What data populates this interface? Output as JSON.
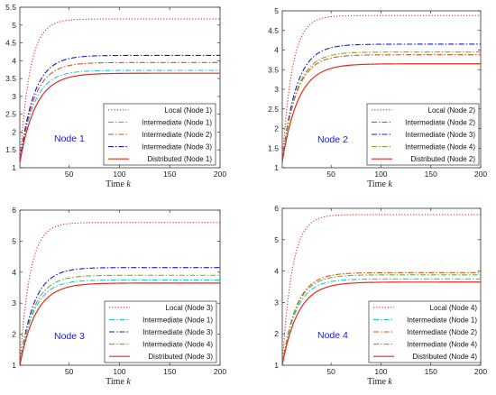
{
  "chart_data": [
    {
      "type": "line",
      "node_label": "Node 1",
      "xlabel": "Time",
      "xlabel_var": "k",
      "xlim": [
        1,
        200
      ],
      "ylim": [
        1,
        5.5
      ],
      "xticks": [
        50,
        100,
        150,
        200
      ],
      "yticks": [
        1,
        1.5,
        2,
        2.5,
        3,
        3.5,
        4,
        4.5,
        5,
        5.5
      ],
      "ytick_labels": [
        "1",
        "1.5",
        "2",
        "2.5",
        "3",
        "3.5",
        "4",
        "4.5",
        "5",
        "5.5"
      ],
      "legend_position": "bottom-right",
      "series": [
        {
          "name": "Local (Node 1)",
          "start": 1.15,
          "end": 5.17,
          "tau": 10,
          "color": "#e8291c",
          "dash": "1.2,2"
        },
        {
          "name": "Intermediate (Node 1)",
          "start": 1.15,
          "end": 3.73,
          "tau": 14,
          "color": "#1ec8d8",
          "dash": "6,2,1.5,2"
        },
        {
          "name": "Intermediate (Node 2)",
          "start": 1.15,
          "end": 3.95,
          "tau": 14,
          "color": "#d95319",
          "dash": "6,2,1.5,2"
        },
        {
          "name": "Intermediate (Node 3)",
          "start": 1.15,
          "end": 4.15,
          "tau": 14,
          "color": "#1a1ad6",
          "dash": "6,2,1.5,2"
        },
        {
          "name": "Distributed (Node 1)",
          "start": 1.15,
          "end": 3.65,
          "tau": 16,
          "color": "#e8291c",
          "dash": ""
        }
      ]
    },
    {
      "type": "line",
      "node_label": "Node 2",
      "xlabel": "Time",
      "xlabel_var": "k",
      "xlim": [
        1,
        200
      ],
      "ylim": [
        1,
        5
      ],
      "xticks": [
        50,
        100,
        150,
        200
      ],
      "yticks": [
        1,
        1.5,
        2,
        2.5,
        3,
        3.5,
        4,
        4.5,
        5
      ],
      "ytick_labels": [
        "1",
        "1.5",
        "2",
        "2.5",
        "3",
        "3.5",
        "4",
        "4.5",
        "5"
      ],
      "legend_position": "bottom-right",
      "series": [
        {
          "name": "Local (Node 2)",
          "start": 1.15,
          "end": 4.88,
          "tau": 10,
          "color": "#e8291c",
          "dash": "1.2,2"
        },
        {
          "name": "Intermediate (Node 2)",
          "start": 1.15,
          "end": 3.88,
          "tau": 14,
          "color": "#d95319",
          "dash": "6,2,1.5,2"
        },
        {
          "name": "Intermediate (Node 3)",
          "start": 1.15,
          "end": 4.15,
          "tau": 14,
          "color": "#1a1ad6",
          "dash": "6,2,1.5,2"
        },
        {
          "name": "Intermediate (Node 4)",
          "start": 1.15,
          "end": 3.95,
          "tau": 14,
          "color": "#77ac30",
          "dash": "6,2,1.5,2"
        },
        {
          "name": "Distributed (Node 2)",
          "start": 1.15,
          "end": 3.65,
          "tau": 16,
          "color": "#e8291c",
          "dash": ""
        }
      ]
    },
    {
      "type": "line",
      "node_label": "Node 3",
      "xlabel": "Time",
      "xlabel_var": "k",
      "xlim": [
        1,
        200
      ],
      "ylim": [
        1,
        6
      ],
      "xticks": [
        50,
        100,
        150,
        200
      ],
      "yticks": [
        1,
        2,
        3,
        4,
        5,
        6
      ],
      "ytick_labels": [
        "1",
        "2",
        "3",
        "4",
        "5",
        "6"
      ],
      "legend_position": "bottom-right",
      "series": [
        {
          "name": "Local (Node 3)",
          "start": 1.0,
          "end": 5.6,
          "tau": 10,
          "color": "#e8291c",
          "dash": "1.2,2"
        },
        {
          "name": "Intermediate (Node 1)",
          "start": 1.0,
          "end": 3.75,
          "tau": 14,
          "color": "#1ec8d8",
          "dash": "6,2,1.5,2"
        },
        {
          "name": "Intermediate (Node 3)",
          "start": 1.0,
          "end": 4.15,
          "tau": 14,
          "color": "#1a1ad6",
          "dash": "6,2,1.5,2"
        },
        {
          "name": "Intermediate (Node 4)",
          "start": 1.0,
          "end": 3.9,
          "tau": 14,
          "color": "#77ac30",
          "dash": "6,2,1.5,2"
        },
        {
          "name": "Distributed (Node 3)",
          "start": 1.0,
          "end": 3.65,
          "tau": 16,
          "color": "#e8291c",
          "dash": ""
        }
      ]
    },
    {
      "type": "line",
      "node_label": "Node 4",
      "xlabel": "Time",
      "xlabel_var": "k",
      "xlim": [
        1,
        200
      ],
      "ylim": [
        1,
        6
      ],
      "xticks": [
        50,
        100,
        150,
        200
      ],
      "yticks": [
        1,
        2,
        3,
        4,
        5,
        6
      ],
      "ytick_labels": [
        "1",
        "2",
        "3",
        "4",
        "5",
        "6"
      ],
      "legend_position": "bottom-right",
      "series": [
        {
          "name": "Local (Node 4)",
          "start": 1.0,
          "end": 5.8,
          "tau": 10,
          "color": "#e8291c",
          "dash": "1.2,2"
        },
        {
          "name": "Intermediate (Node 1)",
          "start": 1.0,
          "end": 3.75,
          "tau": 14,
          "color": "#1ec8d8",
          "dash": "6,2,1.5,2"
        },
        {
          "name": "Intermediate (Node 2)",
          "start": 1.0,
          "end": 3.95,
          "tau": 14,
          "color": "#d95319",
          "dash": "6,2,1.5,2"
        },
        {
          "name": "Intermediate (Node 4)",
          "start": 1.0,
          "end": 3.88,
          "tau": 14,
          "color": "#77ac30",
          "dash": "6,2,1.5,2"
        },
        {
          "name": "Distributed (Node 4)",
          "start": 1.0,
          "end": 3.65,
          "tau": 16,
          "color": "#e8291c",
          "dash": ""
        }
      ]
    }
  ]
}
